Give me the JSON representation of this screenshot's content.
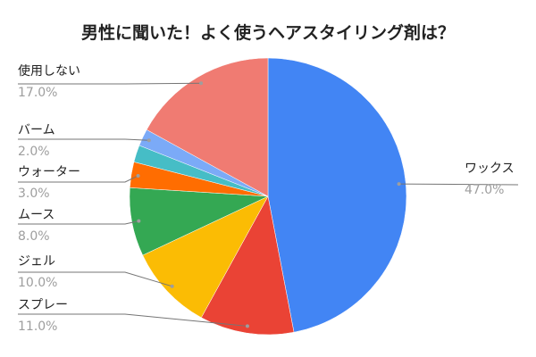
{
  "chart_data": {
    "type": "pie",
    "title": "男性に聞いた！よく使うヘアスタイリング剤は？",
    "start": "top",
    "direction": "clockwise",
    "slices": [
      {
        "label": "ワックス",
        "value": 47.0,
        "display": "47.0%",
        "color": "#4285F4"
      },
      {
        "label": "スプレー",
        "value": 11.0,
        "display": "11.0%",
        "color": "#EA4335"
      },
      {
        "label": "ジェル",
        "value": 10.0,
        "display": "10.0%",
        "color": "#FBBC04"
      },
      {
        "label": "ムース",
        "value": 8.0,
        "display": "8.0%",
        "color": "#34A853"
      },
      {
        "label": "ウォーター",
        "value": 3.0,
        "display": "3.0%",
        "color": "#FF6D01"
      },
      {
        "label": "",
        "value": 2.0,
        "display": "",
        "color": "#46BDC6"
      },
      {
        "label": "バーム",
        "value": 2.0,
        "display": "2.0%",
        "color": "#7BAAF7"
      },
      {
        "label": "使用しない",
        "value": 17.0,
        "display": "17.0%",
        "color": "#F07B72"
      }
    ]
  }
}
